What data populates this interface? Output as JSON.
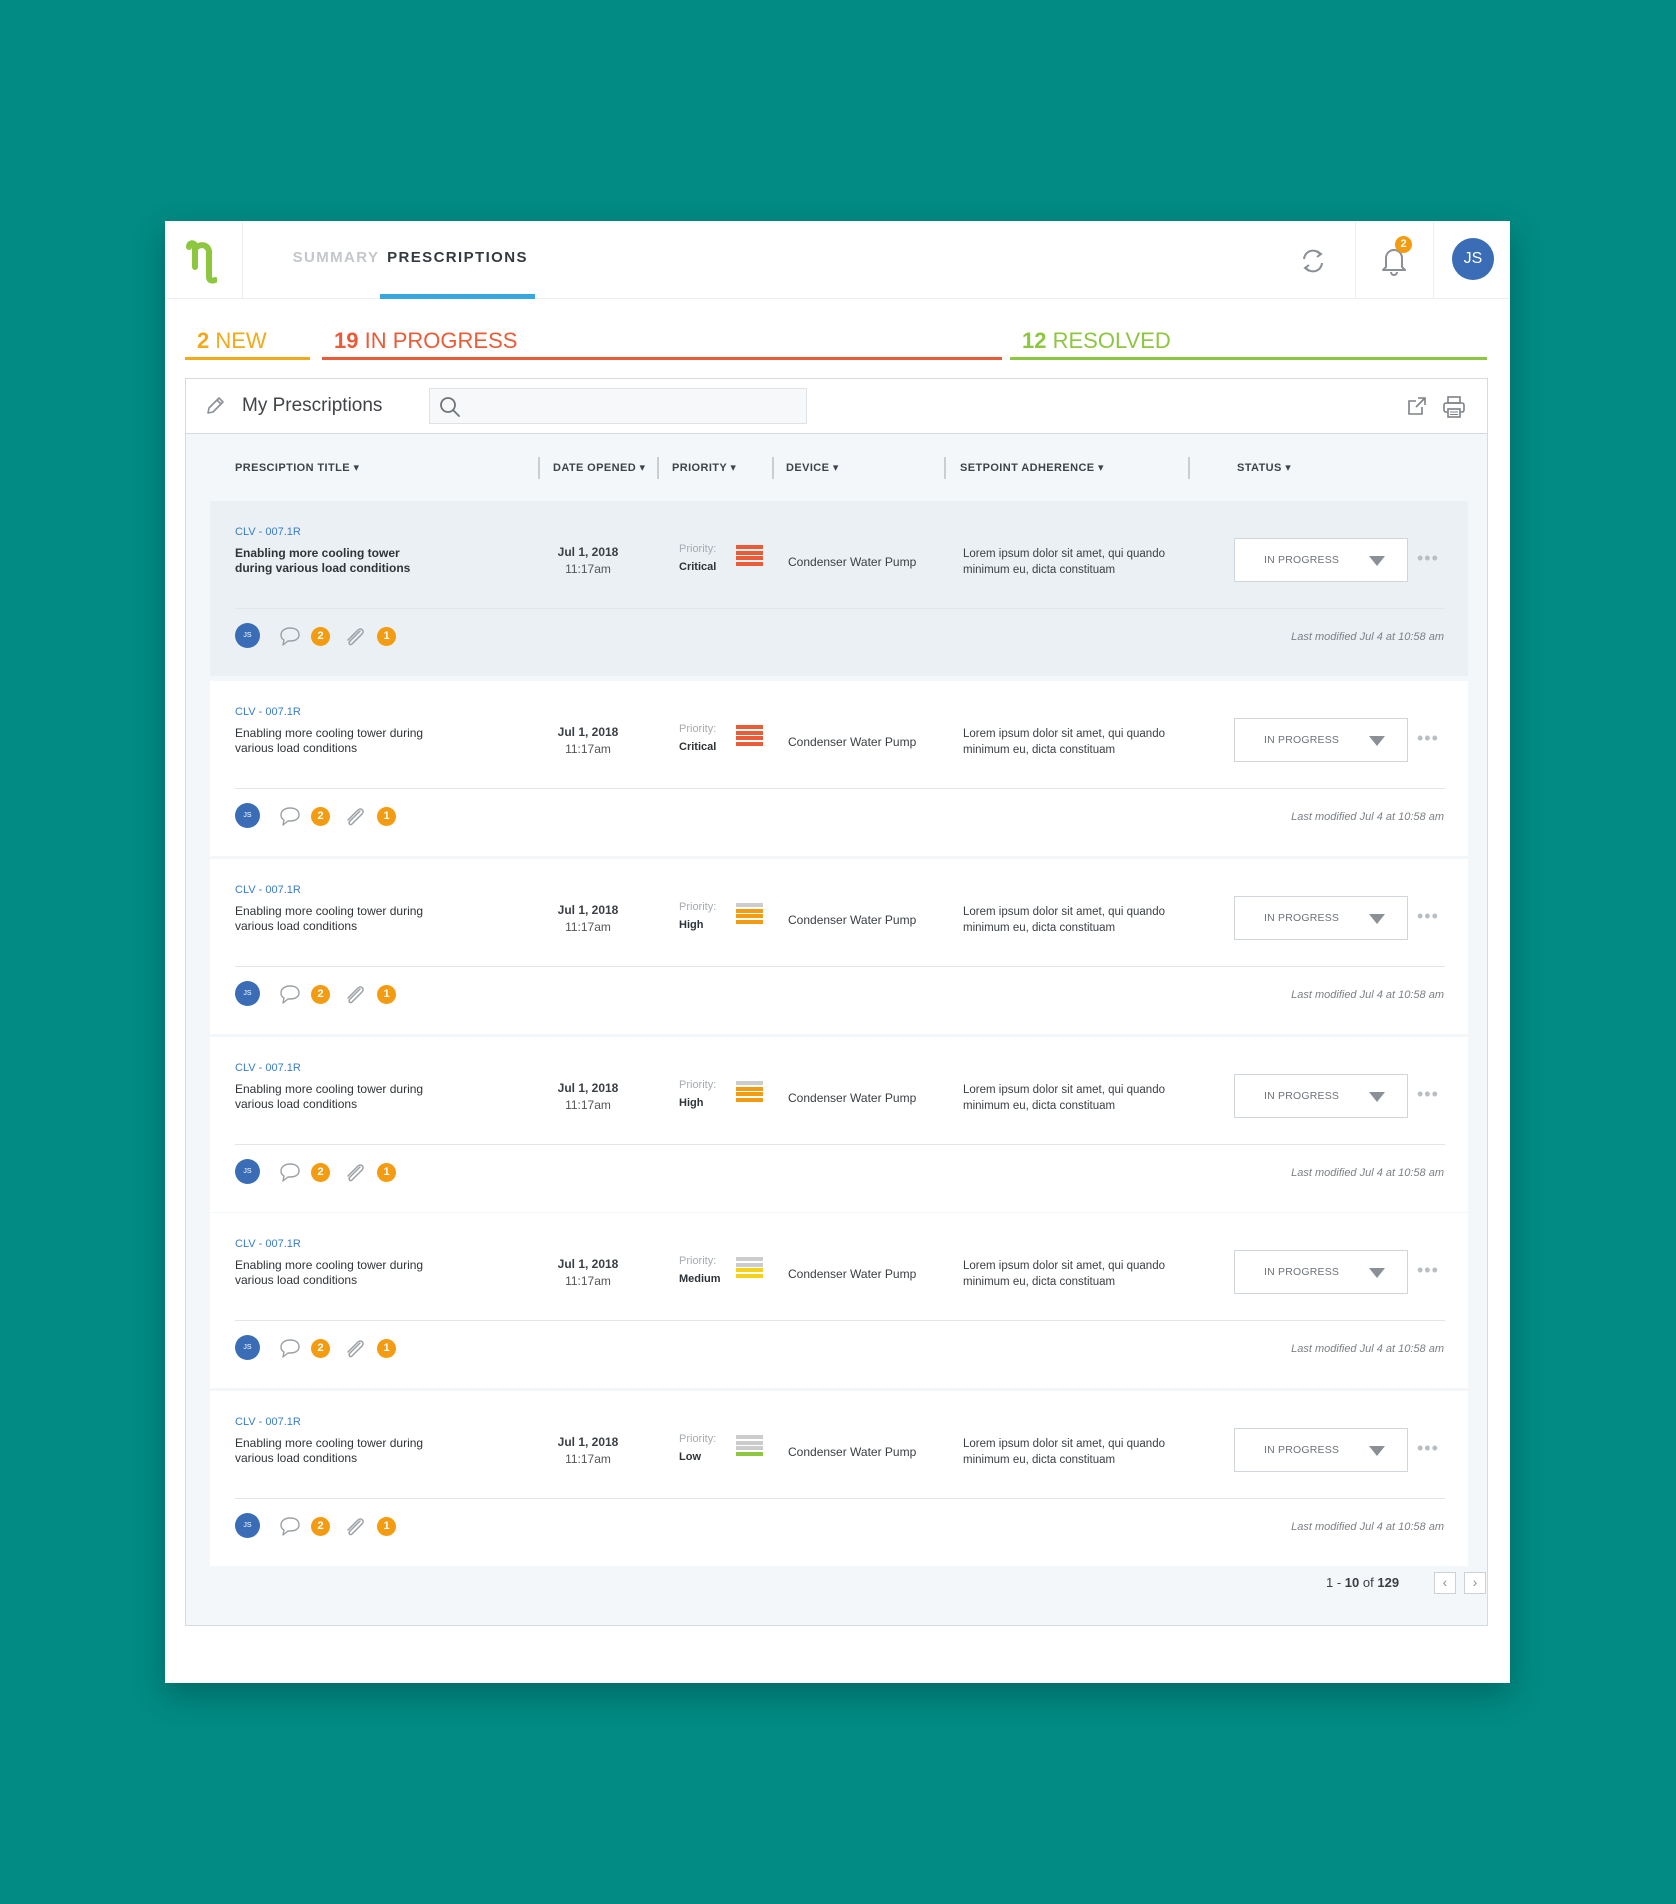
{
  "nav": {
    "tabs": [
      {
        "label": "SUMMARY"
      },
      {
        "label": "PRESCRIPTIONS"
      }
    ],
    "notification_count": "2",
    "user_initials": "JS"
  },
  "status_tabs": {
    "new": {
      "count": "2",
      "label": "NEW",
      "color": "#f2a91a"
    },
    "in_progress": {
      "count": "19",
      "label": "IN PROGRESS",
      "color": "#ea5b37"
    },
    "resolved": {
      "count": "12",
      "label": "RESOLVED",
      "color": "#8dc63f"
    }
  },
  "panel": {
    "title": "My Prescriptions",
    "search_placeholder": ""
  },
  "columns": [
    "PRESCIPTION TITLE",
    "DATE OPENED",
    "PRIORITY",
    "DEVICE",
    "SETPOINT ADHERENCE",
    "STATUS"
  ],
  "rows": [
    {
      "id": "CLV - 007.1R",
      "title": "Enabling more cooling tower during various load conditions",
      "date": "Jul 1, 2018",
      "time": "11:17am",
      "priority_label": "Priority:",
      "priority": "Critical",
      "priority_level": 4,
      "device": "Condenser Water Pump",
      "setpoint": "Lorem ipsum dolor sit amet, qui quando minimum eu, dicta constituam",
      "status": "IN PROGRESS",
      "avatar": "JS",
      "comments": "2",
      "attachments": "1",
      "modified": "Last modified Jul 4 at 10:58 am",
      "highlight": true
    },
    {
      "id": "CLV - 007.1R",
      "title": "Enabling more cooling tower during various load conditions",
      "date": "Jul 1, 2018",
      "time": "11:17am",
      "priority_label": "Priority:",
      "priority": "Critical",
      "priority_level": 4,
      "device": "Condenser Water Pump",
      "setpoint": "Lorem ipsum dolor sit amet, qui quando minimum eu, dicta constituam",
      "status": "IN PROGRESS",
      "avatar": "JS",
      "comments": "2",
      "attachments": "1",
      "modified": "Last modified Jul 4 at 10:58 am",
      "highlight": false
    },
    {
      "id": "CLV - 007.1R",
      "title": "Enabling more cooling tower during various load conditions",
      "date": "Jul 1, 2018",
      "time": "11:17am",
      "priority_label": "Priority:",
      "priority": "High",
      "priority_level": 3,
      "device": "Condenser Water Pump",
      "setpoint": "Lorem ipsum dolor sit amet, qui quando minimum eu, dicta constituam",
      "status": "IN PROGRESS",
      "avatar": "JS",
      "comments": "2",
      "attachments": "1",
      "modified": "Last modified Jul 4 at 10:58 am",
      "highlight": false
    },
    {
      "id": "CLV - 007.1R",
      "title": "Enabling more cooling tower during various load conditions",
      "date": "Jul 1, 2018",
      "time": "11:17am",
      "priority_label": "Priority:",
      "priority": "High",
      "priority_level": 3,
      "device": "Condenser Water Pump",
      "setpoint": "Lorem ipsum dolor sit amet, qui quando minimum eu, dicta constituam",
      "status": "IN PROGRESS",
      "avatar": "JS",
      "comments": "2",
      "attachments": "1",
      "modified": "Last modified Jul 4 at 10:58 am",
      "highlight": false
    },
    {
      "id": "CLV - 007.1R",
      "title": "Enabling more cooling tower during various load conditions",
      "date": "Jul 1, 2018",
      "time": "11:17am",
      "priority_label": "Priority:",
      "priority": "Medium",
      "priority_level": 2,
      "device": "Condenser Water Pump",
      "setpoint": "Lorem ipsum dolor sit amet, qui quando minimum eu, dicta constituam",
      "status": "IN PROGRESS",
      "avatar": "JS",
      "comments": "2",
      "attachments": "1",
      "modified": "Last modified Jul 4 at 10:58 am",
      "highlight": false
    },
    {
      "id": "CLV - 007.1R",
      "title": "Enabling more cooling tower during various load conditions",
      "date": "Jul 1, 2018",
      "time": "11:17am",
      "priority_label": "Priority:",
      "priority": "Low",
      "priority_level": 1,
      "device": "Condenser Water Pump",
      "setpoint": "Lorem ipsum dolor sit amet, qui quando minimum eu, dicta constituam",
      "status": "IN PROGRESS",
      "avatar": "JS",
      "comments": "2",
      "attachments": "1",
      "modified": "Last modified Jul 4 at 10:58 am",
      "highlight": false
    }
  ],
  "priority_colors": {
    "Critical": "#ea5b37",
    "High": "#f39c12",
    "Medium": "#f5d11b",
    "Low": "#8dc63f",
    "inactive": "#cccccc"
  },
  "pagination": {
    "from": "1",
    "to": "10",
    "of_label": "of",
    "total": "129"
  }
}
